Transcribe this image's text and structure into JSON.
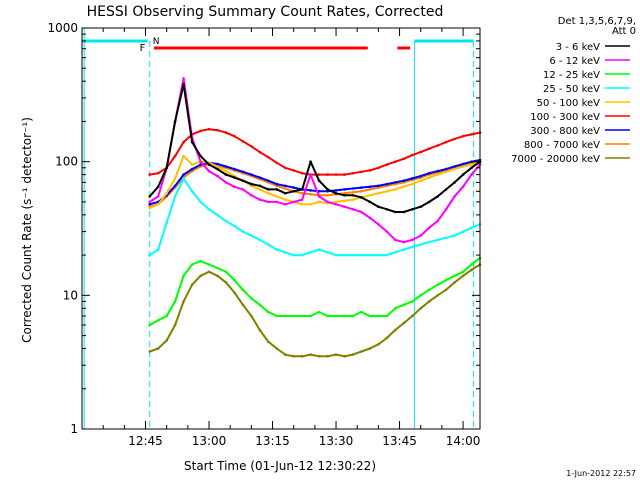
{
  "chart_data": {
    "type": "line",
    "title": "HESSI Observing Summary Count Rates, Corrected",
    "xlabel": "Start Time (01-Jun-12 12:30:22)",
    "ylabel": "Corrected Count Rate (s⁻¹ detector⁻¹)",
    "y_scale": "log",
    "ylim": [
      1,
      1000
    ],
    "y_ticks": [
      "1",
      "10",
      "100",
      "1000"
    ],
    "x_ticks": [
      "12:45",
      "13:00",
      "13:15",
      "13:30",
      "13:45",
      "14:00"
    ],
    "legend_header": [
      "Det 1,3,5,6,7,9,",
      "Att 0"
    ],
    "legend_position": "right",
    "footer_date": "1-Jun-2012 22:57",
    "flag_labels": {
      "F": "F",
      "N": "N"
    },
    "x_minutes": [
      46,
      48,
      50,
      52,
      54,
      56,
      58,
      60,
      62,
      64,
      66,
      68,
      70,
      72,
      74,
      76,
      78,
      80,
      82,
      84,
      86,
      88,
      90,
      92,
      94,
      96,
      98,
      100,
      102,
      104,
      106,
      108,
      110,
      112,
      114,
      116,
      118,
      120,
      122,
      124
    ],
    "series": [
      {
        "name": "3 - 6 keV",
        "color": "#000000",
        "values": [
          55,
          65,
          90,
          200,
          380,
          140,
          110,
          95,
          88,
          80,
          76,
          72,
          68,
          66,
          62,
          62,
          58,
          60,
          62,
          100,
          72,
          62,
          58,
          56,
          56,
          54,
          50,
          46,
          44,
          42,
          42,
          44,
          46,
          50,
          55,
          62,
          70,
          80,
          90,
          100
        ]
      },
      {
        "name": "6 - 12 keV",
        "color": "#ff00ff",
        "values": [
          50,
          55,
          90,
          200,
          420,
          150,
          100,
          85,
          78,
          70,
          65,
          62,
          56,
          52,
          50,
          50,
          48,
          50,
          52,
          80,
          55,
          50,
          48,
          46,
          44,
          42,
          38,
          34,
          30,
          26,
          25,
          26,
          28,
          32,
          36,
          44,
          55,
          65,
          80,
          95
        ]
      },
      {
        "name": "12 - 25 keV",
        "color": "#00ff00",
        "values": [
          6,
          6.5,
          7,
          9,
          14,
          17,
          18,
          17,
          16,
          15,
          13,
          11,
          9.5,
          8.5,
          7.5,
          7,
          7,
          7,
          7,
          7,
          7.5,
          7,
          7,
          7,
          7,
          7.5,
          7,
          7,
          7,
          8,
          8.5,
          9,
          10,
          11,
          12,
          13,
          14,
          15,
          17,
          19
        ]
      },
      {
        "name": "25 - 50 keV",
        "color": "#00ffff",
        "values": [
          20,
          22,
          35,
          55,
          75,
          60,
          50,
          44,
          40,
          36,
          33,
          30,
          28,
          26,
          24,
          22,
          21,
          20,
          20,
          21,
          22,
          21,
          20,
          20,
          20,
          20,
          20,
          20,
          20,
          21,
          22,
          23,
          24,
          25,
          26,
          27,
          28,
          30,
          32,
          34
        ]
      },
      {
        "name": "50 - 100 keV",
        "color": "#ffc000",
        "values": [
          45,
          48,
          58,
          75,
          110,
          95,
          100,
          98,
          92,
          85,
          78,
          72,
          66,
          62,
          58,
          55,
          52,
          50,
          48,
          48,
          50,
          49,
          50,
          51,
          52,
          54,
          56,
          58,
          60,
          62,
          65,
          68,
          72,
          76,
          80,
          84,
          88,
          92,
          95,
          98
        ]
      },
      {
        "name": "100 - 300 keV",
        "color": "#ff0000",
        "values": [
          80,
          82,
          90,
          110,
          140,
          160,
          170,
          175,
          172,
          165,
          155,
          142,
          130,
          118,
          108,
          98,
          90,
          86,
          82,
          80,
          80,
          80,
          80,
          80,
          82,
          84,
          86,
          90,
          95,
          100,
          105,
          112,
          118,
          125,
          132,
          140,
          148,
          155,
          160,
          165
        ]
      },
      {
        "name": "300 - 800 keV",
        "color": "#0000ff",
        "values": [
          48,
          50,
          56,
          66,
          80,
          88,
          95,
          98,
          96,
          92,
          88,
          84,
          80,
          76,
          72,
          68,
          66,
          64,
          62,
          61,
          60,
          60,
          61,
          62,
          63,
          64,
          65,
          66,
          68,
          70,
          72,
          75,
          78,
          82,
          85,
          88,
          92,
          96,
          100,
          103
        ]
      },
      {
        "name": "800 - 7000 keV",
        "color": "#ff8000",
        "values": [
          46,
          48,
          55,
          64,
          76,
          85,
          92,
          96,
          94,
          90,
          86,
          82,
          78,
          74,
          70,
          66,
          63,
          60,
          58,
          57,
          56,
          56,
          57,
          58,
          59,
          60,
          62,
          64,
          66,
          68,
          70,
          73,
          76,
          80,
          83,
          86,
          90,
          94,
          97,
          100
        ]
      },
      {
        "name": "7000 - 20000 keV",
        "color": "#808000",
        "values": [
          3.8,
          4,
          4.6,
          6,
          9,
          12,
          14,
          15,
          14,
          12.5,
          10.5,
          8.5,
          7,
          5.5,
          4.5,
          4,
          3.6,
          3.5,
          3.5,
          3.6,
          3.5,
          3.5,
          3.6,
          3.5,
          3.6,
          3.8,
          4,
          4.3,
          4.8,
          5.5,
          6.2,
          7,
          8,
          9,
          10,
          11,
          12.5,
          14,
          15.5,
          17
        ]
      }
    ]
  }
}
